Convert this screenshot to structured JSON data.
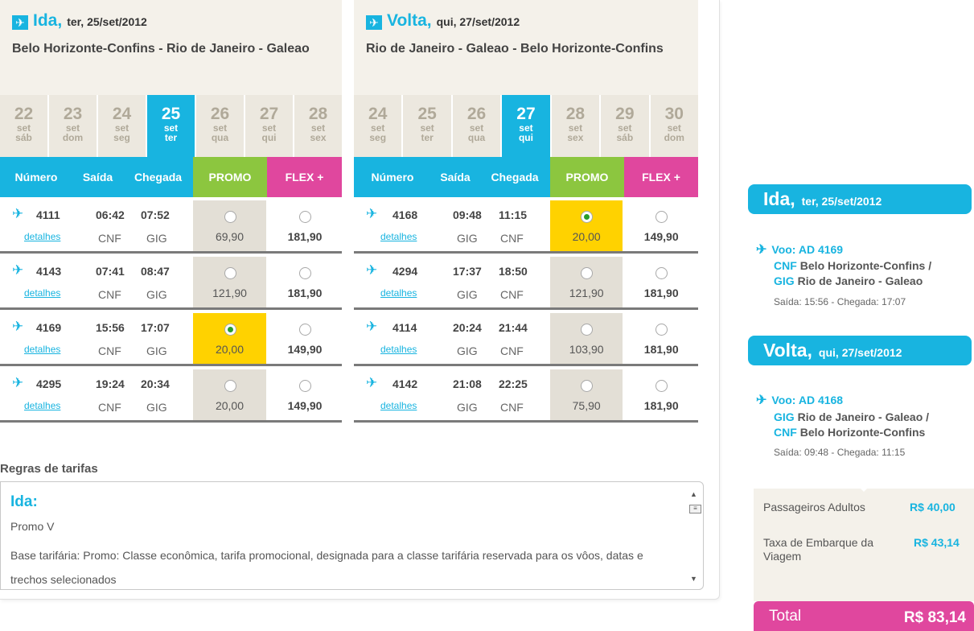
{
  "ida": {
    "direction": "Ida,",
    "date": "ter, 25/set/2012",
    "route": "Belo Horizonte-Confins - Rio de Janeiro - Galeao",
    "days": [
      {
        "num": "22",
        "month": "set",
        "weekday": "sáb",
        "active": false
      },
      {
        "num": "23",
        "month": "set",
        "weekday": "dom",
        "active": false
      },
      {
        "num": "24",
        "month": "set",
        "weekday": "seg",
        "active": false
      },
      {
        "num": "25",
        "month": "set",
        "weekday": "ter",
        "active": true
      },
      {
        "num": "26",
        "month": "set",
        "weekday": "qua",
        "active": false
      },
      {
        "num": "27",
        "month": "set",
        "weekday": "qui",
        "active": false
      },
      {
        "num": "28",
        "month": "set",
        "weekday": "sex",
        "active": false
      }
    ],
    "flights": [
      {
        "number": "4111",
        "details": "detalhes",
        "dep_time": "06:42",
        "arr_time": "07:52",
        "dep_ap": "CNF",
        "arr_ap": "GIG",
        "promo": "69,90",
        "flex": "181,90",
        "promo_selected": false
      },
      {
        "number": "4143",
        "details": "detalhes",
        "dep_time": "07:41",
        "arr_time": "08:47",
        "dep_ap": "CNF",
        "arr_ap": "GIG",
        "promo": "121,90",
        "flex": "181,90",
        "promo_selected": false
      },
      {
        "number": "4169",
        "details": "detalhes",
        "dep_time": "15:56",
        "arr_time": "17:07",
        "dep_ap": "CNF",
        "arr_ap": "GIG",
        "promo": "20,00",
        "flex": "149,90",
        "promo_selected": true
      },
      {
        "number": "4295",
        "details": "detalhes",
        "dep_time": "19:24",
        "arr_time": "20:34",
        "dep_ap": "CNF",
        "arr_ap": "GIG",
        "promo": "20,00",
        "flex": "149,90",
        "promo_selected": false
      }
    ]
  },
  "volta": {
    "direction": "Volta,",
    "date": "qui, 27/set/2012",
    "route": "Rio de Janeiro - Galeao - Belo Horizonte-Confins",
    "days": [
      {
        "num": "24",
        "month": "set",
        "weekday": "seg",
        "active": false
      },
      {
        "num": "25",
        "month": "set",
        "weekday": "ter",
        "active": false
      },
      {
        "num": "26",
        "month": "set",
        "weekday": "qua",
        "active": false
      },
      {
        "num": "27",
        "month": "set",
        "weekday": "qui",
        "active": true
      },
      {
        "num": "28",
        "month": "set",
        "weekday": "sex",
        "active": false
      },
      {
        "num": "29",
        "month": "set",
        "weekday": "sáb",
        "active": false
      },
      {
        "num": "30",
        "month": "set",
        "weekday": "dom",
        "active": false
      }
    ],
    "flights": [
      {
        "number": "4168",
        "details": "detalhes",
        "dep_time": "09:48",
        "arr_time": "11:15",
        "dep_ap": "GIG",
        "arr_ap": "CNF",
        "promo": "20,00",
        "flex": "149,90",
        "promo_selected": true
      },
      {
        "number": "4294",
        "details": "detalhes",
        "dep_time": "17:37",
        "arr_time": "18:50",
        "dep_ap": "GIG",
        "arr_ap": "CNF",
        "promo": "121,90",
        "flex": "181,90",
        "promo_selected": false
      },
      {
        "number": "4114",
        "details": "detalhes",
        "dep_time": "20:24",
        "arr_time": "21:44",
        "dep_ap": "GIG",
        "arr_ap": "CNF",
        "promo": "103,90",
        "flex": "181,90",
        "promo_selected": false
      },
      {
        "number": "4142",
        "details": "detalhes",
        "dep_time": "21:08",
        "arr_time": "22:25",
        "dep_ap": "GIG",
        "arr_ap": "CNF",
        "promo": "75,90",
        "flex": "181,90",
        "promo_selected": false
      }
    ]
  },
  "columns": {
    "number": "Número",
    "dep": "Saída",
    "arr": "Chegada",
    "promo": "PROMO",
    "flex": "FLEX +"
  },
  "rules": {
    "title": "Regras de tarifas",
    "heading": "Ida:",
    "fare_name": "Promo V",
    "base_text": "Base tarifária: Promo: Classe econômica, tarifa promocional, designada para a classe tarifária reservada para os vôos, datas e trechos selecionados"
  },
  "summary": {
    "ida": {
      "direction": "Ida,",
      "date": "ter, 25/set/2012",
      "voo": "Voo: AD 4169",
      "from_code": "CNF",
      "from_name": "Belo Horizonte-Confins /",
      "to_code": "GIG",
      "to_name": "Rio de Janeiro - Galeao",
      "times": "Saída: 15:56 - Chegada: 17:07"
    },
    "volta": {
      "direction": "Volta,",
      "date": "qui, 27/set/2012",
      "voo": "Voo: AD 4168",
      "from_code": "GIG",
      "from_name": "Rio de Janeiro - Galeao /",
      "to_code": "CNF",
      "to_name": "Belo Horizonte-Confins",
      "times": "Saída: 09:48 - Chegada: 11:15"
    },
    "pax_label": "Passageiros Adultos",
    "pax_value": "R$  40,00",
    "tax_label": "Taxa de Embarque da Viagem",
    "tax_value": "R$ 43,14",
    "total_label": "Total",
    "total_value": "R$ 83,14"
  },
  "colors": {
    "accent": "#18b4e0",
    "promo": "#8cc63f",
    "flex": "#e0479e",
    "selected": "#ffd200"
  }
}
